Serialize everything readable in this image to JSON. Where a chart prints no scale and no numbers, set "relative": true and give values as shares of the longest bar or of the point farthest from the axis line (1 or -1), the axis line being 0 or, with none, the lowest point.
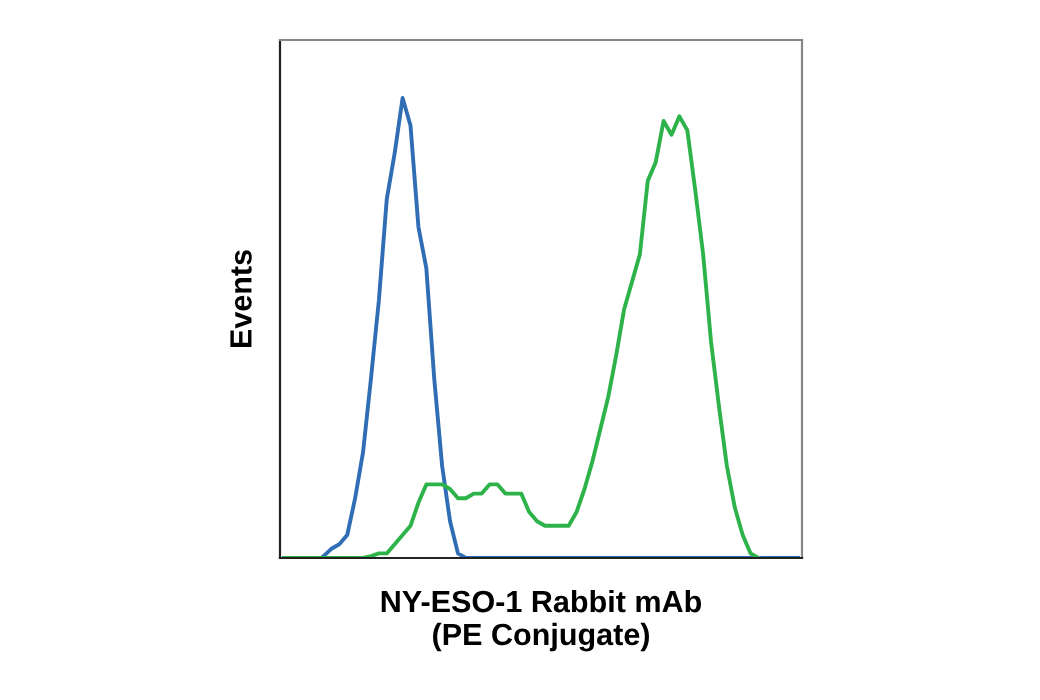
{
  "chart_data": {
    "type": "line",
    "relative": true,
    "xlabel": "NY-ESO-1 Rabbit mAb\n(PE Conjugate)",
    "ylabel": "Events",
    "legend": false,
    "grid": false,
    "marker": "none",
    "line_style": "solid",
    "categories": [
      null,
      null,
      null,
      null,
      null,
      null,
      null,
      null,
      null,
      null,
      null,
      null,
      null,
      null,
      null,
      null,
      null,
      null,
      null,
      null,
      null,
      null,
      null,
      null,
      null,
      null,
      null,
      null,
      null,
      null,
      null,
      null,
      null,
      null,
      null,
      null,
      null,
      null,
      null,
      null,
      null,
      null,
      null,
      null,
      null,
      null,
      null,
      null,
      null,
      null,
      null,
      null,
      null,
      null,
      null,
      null,
      null,
      null,
      null,
      null,
      null,
      null,
      null,
      null,
      null,
      null
    ],
    "series": [
      {
        "color": "#2f6db5",
        "values": [
          null,
          null,
          null,
          null,
          null,
          0.004,
          0.02,
          0.03,
          0.05,
          0.13,
          0.23,
          0.39,
          0.56,
          0.78,
          0.88,
          1.0,
          0.94,
          0.72,
          0.63,
          0.39,
          0.2,
          0.08,
          0.01,
          0,
          0,
          0,
          0,
          0,
          0,
          0,
          0,
          0,
          0,
          0,
          0,
          0,
          0,
          0,
          0,
          0,
          0,
          0,
          0,
          0,
          0,
          0,
          0,
          0,
          0,
          0,
          0,
          0,
          0,
          0,
          0,
          0,
          0,
          0,
          0,
          0,
          0,
          0,
          0,
          0,
          0,
          0
        ]
      },
      {
        "color": "#2db34a",
        "values": [
          0,
          0,
          0,
          0,
          0,
          0,
          0,
          0,
          0,
          0,
          0,
          0.004,
          0.01,
          0.01,
          0.03,
          0.05,
          0.07,
          0.12,
          0.16,
          0.16,
          0.16,
          0.15,
          0.13,
          0.13,
          0.14,
          0.14,
          0.16,
          0.16,
          0.14,
          0.14,
          0.14,
          0.1,
          0.08,
          0.07,
          0.07,
          0.07,
          0.07,
          0.1,
          0.15,
          0.21,
          0.28,
          0.35,
          0.44,
          0.54,
          0.6,
          0.66,
          0.82,
          0.86,
          0.95,
          0.92,
          0.96,
          0.93,
          0.8,
          0.66,
          0.47,
          0.33,
          0.2,
          0.11,
          0.05,
          0.01,
          0,
          null,
          null,
          null,
          null,
          null
        ]
      }
    ]
  }
}
